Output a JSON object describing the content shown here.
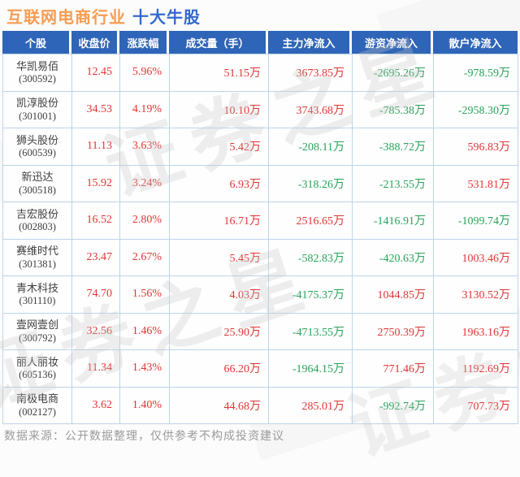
{
  "title": {
    "industry": "互联网电商行业",
    "suffix": "十大牛股"
  },
  "watermark": {
    "text": "证券之星"
  },
  "footer": {
    "source_note": "数据来源：公开数据整理，仅供参考不构成投资建议"
  },
  "colors": {
    "title_industry": "#f99c51",
    "title_suffix": "#3468cf",
    "header_bg": "#2f65b8",
    "header_text": "#ffffff",
    "up_red": "#e23535",
    "down_green": "#28a35a",
    "grid_border": "#bcd4ea"
  },
  "chart_data": {
    "type": "table",
    "title": "互联网电商行业 十大牛股",
    "headers": [
      "个股",
      "收盘价",
      "涨跌幅",
      "成交量（手）",
      "主力净流入",
      "游资净流入",
      "散户净流入"
    ],
    "rows": [
      {
        "name": "华凯易佰",
        "code": "(300592)",
        "close": "12.45",
        "change": "5.96%",
        "volume": "51.15万",
        "main": "3673.85万",
        "hot": "-2695.26万",
        "retail": "-978.59万"
      },
      {
        "name": "凯淳股份",
        "code": "(301001)",
        "close": "34.53",
        "change": "4.19%",
        "volume": "10.10万",
        "main": "3743.68万",
        "hot": "-785.38万",
        "retail": "-2958.30万"
      },
      {
        "name": "狮头股份",
        "code": "(600539)",
        "close": "11.13",
        "change": "3.63%",
        "volume": "5.42万",
        "main": "-208.11万",
        "hot": "-388.72万",
        "retail": "596.83万"
      },
      {
        "name": "新迅达",
        "code": "(300518)",
        "close": "15.92",
        "change": "3.24%",
        "volume": "6.93万",
        "main": "-318.26万",
        "hot": "-213.55万",
        "retail": "531.81万"
      },
      {
        "name": "吉宏股份",
        "code": "(002803)",
        "close": "16.52",
        "change": "2.80%",
        "volume": "16.71万",
        "main": "2516.65万",
        "hot": "-1416.91万",
        "retail": "-1099.74万"
      },
      {
        "name": "赛维时代",
        "code": "(301381)",
        "close": "23.47",
        "change": "2.67%",
        "volume": "5.45万",
        "main": "-582.83万",
        "hot": "-420.63万",
        "retail": "1003.46万"
      },
      {
        "name": "青木科技",
        "code": "(301110)",
        "close": "74.70",
        "change": "1.56%",
        "volume": "4.03万",
        "main": "-4175.37万",
        "hot": "1044.85万",
        "retail": "3130.52万"
      },
      {
        "name": "壹网壹创",
        "code": "(300792)",
        "close": "32.56",
        "change": "1.46%",
        "volume": "25.90万",
        "main": "-4713.55万",
        "hot": "2750.39万",
        "retail": "1963.16万"
      },
      {
        "name": "丽人丽妆",
        "code": "(605136)",
        "close": "11.34",
        "change": "1.43%",
        "volume": "66.20万",
        "main": "-1964.15万",
        "hot": "771.46万",
        "retail": "1192.69万"
      },
      {
        "name": "南极电商",
        "code": "(002127)",
        "close": "3.62",
        "change": "1.40%",
        "volume": "44.68万",
        "main": "285.01万",
        "hot": "-992.74万",
        "retail": "707.73万"
      }
    ]
  }
}
